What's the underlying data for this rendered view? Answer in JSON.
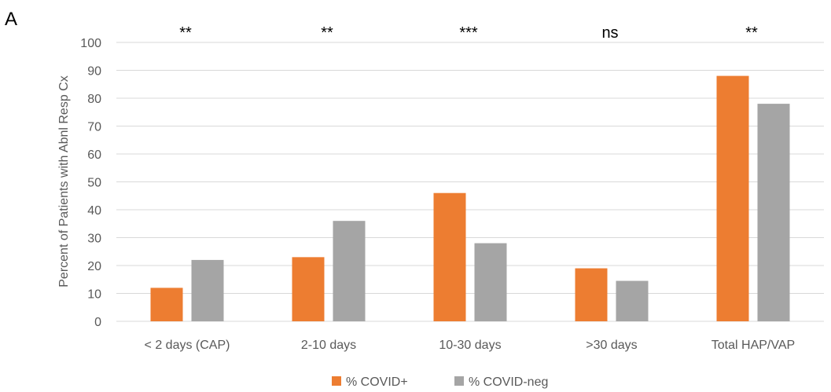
{
  "panel_label": "A",
  "chart_data": {
    "type": "bar",
    "title": "",
    "xlabel": "",
    "ylabel": "Percent of Patients with Abnl Resp Cx",
    "ylim": [
      0,
      100
    ],
    "yticks": [
      0,
      10,
      20,
      30,
      40,
      50,
      60,
      70,
      80,
      90,
      100
    ],
    "grid": true,
    "legend_position": "bottom",
    "categories": [
      "< 2 days (CAP)",
      "2-10 days",
      "10-30 days",
      ">30 days",
      "Total HAP/VAP"
    ],
    "significance": [
      "**",
      "**",
      "***",
      "ns",
      "**"
    ],
    "series": [
      {
        "name": "% COVID+",
        "color": "#ed7d31",
        "values": [
          12,
          23,
          46,
          19,
          88
        ]
      },
      {
        "name": "% COVID-neg",
        "color": "#a5a5a5",
        "values": [
          22,
          36,
          28,
          14.5,
          78
        ]
      }
    ]
  }
}
